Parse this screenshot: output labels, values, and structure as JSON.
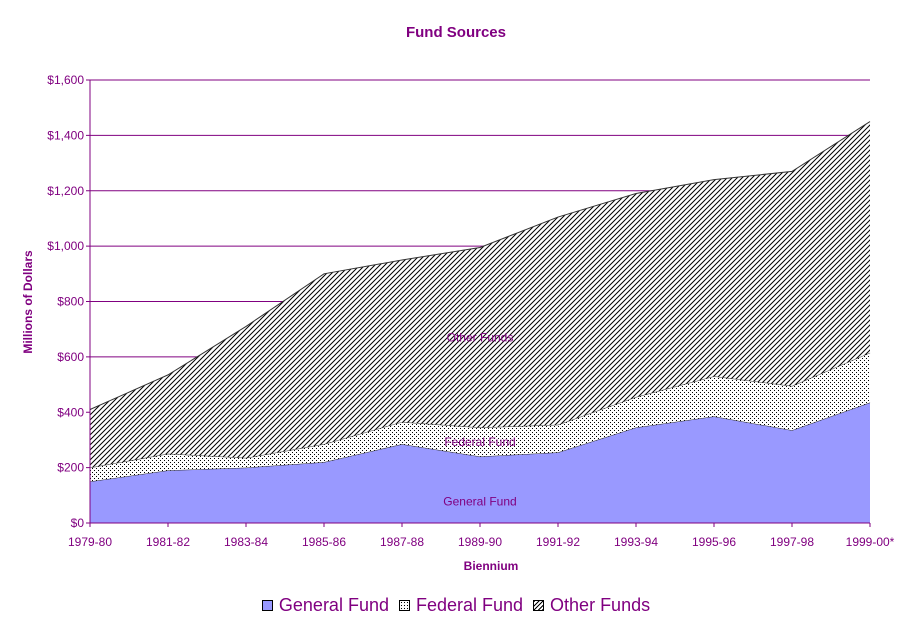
{
  "chart_data": {
    "type": "area",
    "stacked": true,
    "title": "Fund Sources",
    "xlabel": "Biennium",
    "ylabel": "Millions of Dollars",
    "ylim": [
      0,
      1600
    ],
    "ytick_step": 200,
    "ytick_labels": [
      "$0",
      "$200",
      "$400",
      "$600",
      "$800",
      "$1,000",
      "$1,200",
      "$1,400",
      "$1,600"
    ],
    "grid": "horizontal",
    "legend_position": "bottom",
    "categories": [
      "1979-80",
      "1981-82",
      "1983-84",
      "1985-86",
      "1987-88",
      "1989-90",
      "1991-92",
      "1993-94",
      "1995-96",
      "1997-98",
      "1999-00*"
    ],
    "series": [
      {
        "name": "General Fund",
        "values": [
          150,
          190,
          200,
          220,
          285,
          240,
          255,
          345,
          385,
          335,
          435
        ],
        "color": "#9999ff",
        "pattern": "solid"
      },
      {
        "name": "Federal Fund",
        "values": [
          50,
          60,
          35,
          65,
          80,
          105,
          100,
          110,
          145,
          160,
          180
        ],
        "color": "#ffffff",
        "pattern": "dots"
      },
      {
        "name": "Other Funds",
        "values": [
          210,
          285,
          475,
          615,
          585,
          650,
          750,
          735,
          710,
          775,
          835
        ],
        "color": "#ffffff",
        "pattern": "diagonal-hatch"
      }
    ],
    "area_labels": [
      "General Fund",
      "Federal Fund",
      "Other Funds"
    ]
  }
}
